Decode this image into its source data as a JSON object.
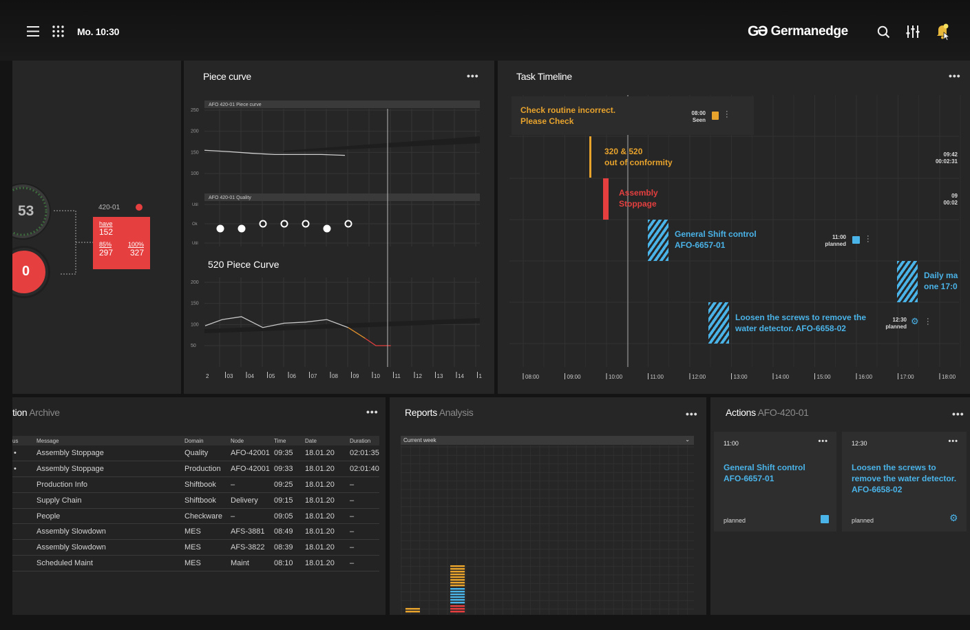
{
  "topbar": {
    "datetime": "Mo. 10:30",
    "brand_logo": "GƏ",
    "brand_name": "Germanedge",
    "icons": [
      "hamburger-menu-icon",
      "apps-grid-icon",
      "search-icon",
      "sliders-icon",
      "bell-icon"
    ]
  },
  "kpi": {
    "ring_value": "53",
    "alert_value": "0",
    "node": "420-01",
    "have_label": "have",
    "have_value": "152",
    "pct85_label": "85%",
    "pct85_value": "297",
    "pct100_label": "100%",
    "pct100_value": "327"
  },
  "piece_curve": {
    "title": "Piece curve",
    "chart1_label": "AFO 420-01 Piece curve",
    "chart2_label": "AFO 420-01 Quality",
    "chart3_title": "520 Piece Curve",
    "chart_data": [
      {
        "type": "line",
        "title": "AFO 420-01 Piece curve",
        "ylim": [
          100,
          250
        ],
        "yticks": [
          "250",
          "200",
          "150",
          "100"
        ],
        "series": [
          {
            "x": [
              0,
              1,
              2,
              3,
              4,
              5,
              6
            ],
            "values": [
              155,
              152,
              148,
              145,
              145,
              145,
              143
            ]
          }
        ]
      },
      {
        "type": "scatter",
        "title": "AFO 420-01 Quality",
        "yticks": [
          "Util",
          "Ok",
          "Util"
        ],
        "points": [
          {
            "x": 1,
            "level": "mid-low",
            "filled": true
          },
          {
            "x": 2,
            "level": "mid-low",
            "filled": true
          },
          {
            "x": 3,
            "level": "mid",
            "filled": false
          },
          {
            "x": 4,
            "level": "mid",
            "filled": false
          },
          {
            "x": 5,
            "level": "mid",
            "filled": false
          },
          {
            "x": 6,
            "level": "mid-low",
            "filled": true
          },
          {
            "x": 7,
            "level": "mid",
            "filled": false
          }
        ]
      },
      {
        "type": "line",
        "title": "520 Piece Curve",
        "ylim": [
          25,
          200
        ],
        "yticks": [
          "200",
          "150",
          "100",
          "50"
        ],
        "categories": [
          "2",
          "03",
          "04",
          "05",
          "06",
          "07",
          "08",
          "09",
          "10",
          "11",
          "12",
          "13",
          "14",
          "1"
        ],
        "series": [
          {
            "x": [
              0,
              0.8,
              1.7,
              2.7,
              3.7,
              4.7,
              5.7,
              6.7
            ],
            "values": [
              80,
              97,
              105,
              75,
              87,
              90,
              97,
              75
            ],
            "color": "#c8c8c8"
          },
          {
            "x": [
              6.7,
              7.5
            ],
            "values": [
              75,
              45
            ],
            "color": "#e0902c"
          },
          {
            "x": [
              7.5,
              8.0,
              8.7
            ],
            "values": [
              45,
              25,
              25
            ],
            "color": "#e53f3f"
          }
        ]
      }
    ]
  },
  "timeline": {
    "title": "Task Timeline",
    "hours": [
      "08:00",
      "09:00",
      "10:00",
      "11:00",
      "12:00",
      "13:00",
      "14:00",
      "15:00",
      "16:00",
      "17:00",
      "18:00"
    ],
    "tasks": [
      {
        "text": "Check routine incorrect.\nPlease Check",
        "time": "08:00",
        "status": "Seen",
        "color": "#e8a32c"
      },
      {
        "text": "320 & 520\nout of conformity",
        "time": "09:42",
        "status": "00:02:31",
        "color": "#e8a32c"
      },
      {
        "text": "Assembly\nStoppage",
        "time": "09",
        "status": "00:02",
        "color": "#e53f3f"
      },
      {
        "text": "General Shift control\nAFO-6657-01",
        "time": "11:00",
        "status": "planned",
        "color": "#4ab3e8"
      },
      {
        "text": "Daily ma\none 17:0",
        "time": "",
        "status": "",
        "color": "#4ab3e8"
      },
      {
        "text": "Loosen the screws to remove the\nwater detector. AFO-6658-02",
        "time": "12:30",
        "status": "planned",
        "color": "#4ab3e8"
      }
    ]
  },
  "archive": {
    "title_main": "tion",
    "title_sub": " Archive",
    "columns": [
      "us",
      "Message",
      "Domain",
      "Node",
      "Time",
      "Date",
      "Duration"
    ],
    "rows": [
      {
        "dot": "•",
        "message": "Assembly Stoppage",
        "domain": "Quality",
        "node": "AFO-42001",
        "time": "09:35",
        "date": "18.01.20",
        "duration": "02:01:35"
      },
      {
        "dot": "•",
        "message": "Assembly Stoppage",
        "domain": "Production",
        "node": "AFO-42001",
        "time": "09:33",
        "date": "18.01.20",
        "duration": "02:01:40"
      },
      {
        "dot": "",
        "message": "Production Info",
        "domain": "Shiftbook",
        "node": "–",
        "time": "09:25",
        "date": "18.01.20",
        "duration": "–"
      },
      {
        "dot": "",
        "message": "Supply Chain",
        "domain": "Shiftbook",
        "node": "Delivery",
        "time": "09:15",
        "date": "18.01.20",
        "duration": "–"
      },
      {
        "dot": "",
        "message": "People",
        "domain": "Checkware",
        "node": "–",
        "time": "09:05",
        "date": "18.01.20",
        "duration": "–"
      },
      {
        "dot": "",
        "message": "Assembly Slowdown",
        "domain": "MES",
        "node": "AFS-3881",
        "time": "08:49",
        "date": "18.01.20",
        "duration": "–"
      },
      {
        "dot": "",
        "message": "Assembly Slowdown",
        "domain": "MES",
        "node": "AFS-3822",
        "time": "08:39",
        "date": "18.01.20",
        "duration": "–"
      },
      {
        "dot": "",
        "message": "Scheduled Maint",
        "domain": "MES",
        "node": "Maint",
        "time": "08:10",
        "date": "18.01.20",
        "duration": "–"
      }
    ]
  },
  "reports": {
    "title_main": "Reports",
    "title_sub": " Analysis",
    "filter_label": "Current week",
    "chart_data": {
      "type": "bar",
      "stacked": true,
      "columns": [
        {
          "column": 1,
          "segments": [
            {
              "color": "#e8a32c",
              "count": 2
            }
          ]
        },
        {
          "column": 4,
          "segments": [
            {
              "color": "#e53f3f",
              "count": 3
            },
            {
              "color": "#4ab3e8",
              "count": 6
            },
            {
              "color": "#e8a32c",
              "count": 8
            }
          ]
        }
      ]
    }
  },
  "actions": {
    "title_main": "Actions",
    "title_sub": " AFO-420-01",
    "cards": [
      {
        "time": "11:00",
        "title": "General Shift control\nAFO-6657-01",
        "status": "planned",
        "icon": "calendar-icon"
      },
      {
        "time": "12:30",
        "title": "Loosen the screws to\nremove the water detector.\nAFO-6658-02",
        "status": "planned",
        "icon": "gears-icon"
      }
    ]
  },
  "colors": {
    "orange": "#e8a32c",
    "red": "#e53f3f",
    "blue": "#4ab3e8",
    "panel": "#262626"
  }
}
